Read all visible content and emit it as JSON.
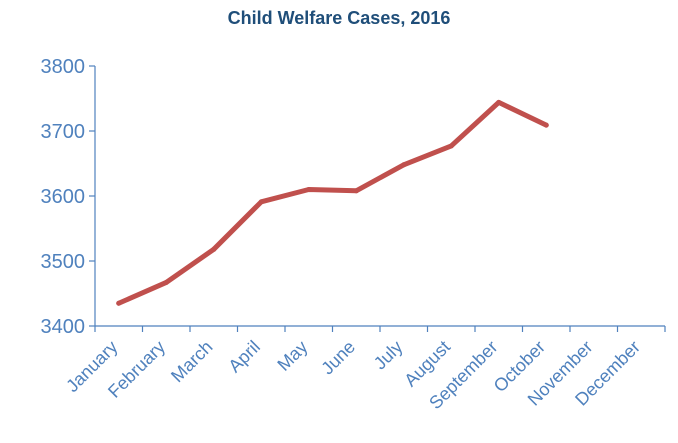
{
  "chart_data": {
    "type": "line",
    "title": "Child Welfare Cases, 2016",
    "xlabel": "",
    "ylabel": "",
    "categories": [
      "January",
      "February",
      "March",
      "April",
      "May",
      "June",
      "July",
      "August",
      "September",
      "October",
      "November",
      "December"
    ],
    "series": [
      {
        "values": [
          3435,
          3467,
          3518,
          3591,
          3610,
          3608,
          3648,
          3677,
          3744,
          3709,
          null,
          null
        ],
        "color": "#c0504d"
      }
    ],
    "ylim": [
      3400,
      3800
    ],
    "yticks": [
      3400,
      3500,
      3600,
      3700,
      3800
    ],
    "grid": false,
    "legend": "none",
    "axis_color": "#4f81bd",
    "label_color": "#4f81bd",
    "title_color": "#1f4e79"
  }
}
